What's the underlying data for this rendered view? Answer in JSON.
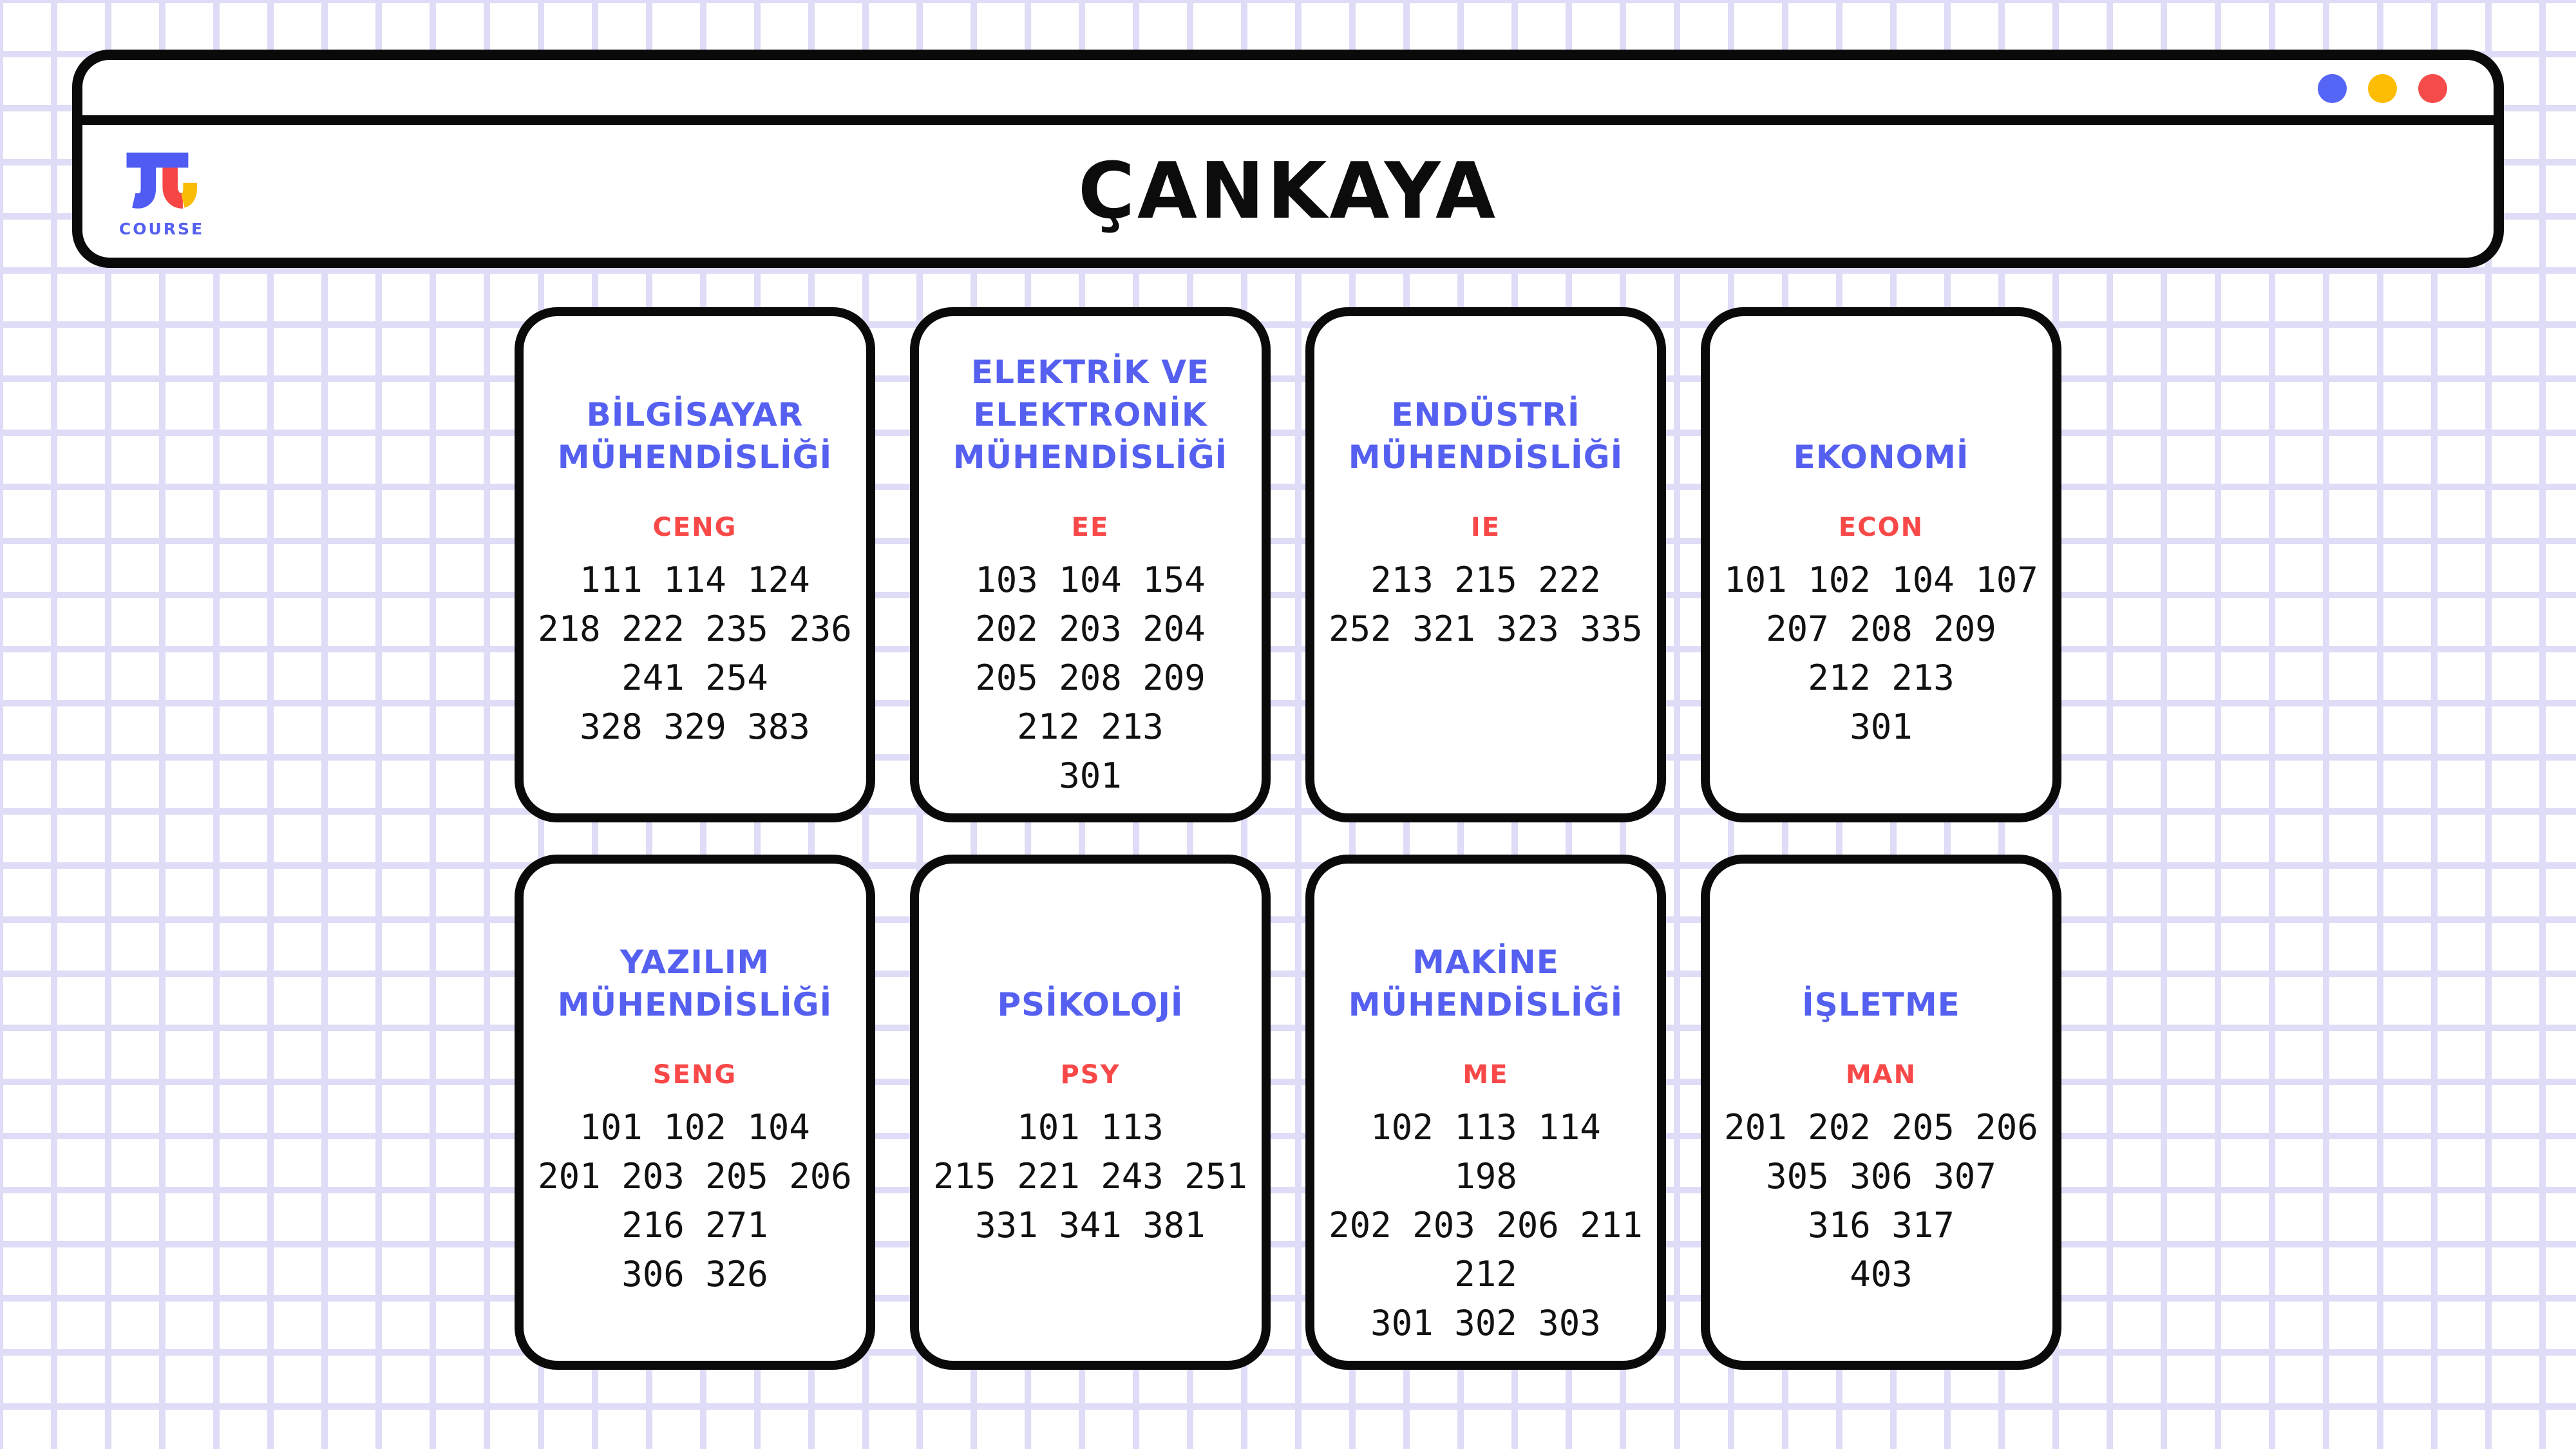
{
  "header": {
    "title": "ÇANKAYA",
    "brand": {
      "wordmark": "COURSE"
    },
    "window_controls": [
      {
        "name": "window-control-blue",
        "color": "#5565F5"
      },
      {
        "name": "window-control-yellow",
        "color": "#FCBD04"
      },
      {
        "name": "window-control-red",
        "color": "#F64B4B"
      }
    ]
  },
  "colors": {
    "accent_blue": "#5560F0",
    "accent_red": "#F84848",
    "ink": "#0A0A0A",
    "grid_line": "#DEDCF6",
    "logo_blue": "#4F5BF2",
    "logo_red": "#F64545",
    "logo_yellow": "#FBBC05"
  },
  "cards": [
    {
      "title": "BİLGİSAYAR MÜHENDİSLİĞİ",
      "code": "CENG",
      "lines": [
        [
          "111",
          "114",
          "124"
        ],
        [
          "218",
          "222",
          "235",
          "236"
        ],
        [
          "241",
          "254"
        ],
        [
          "328",
          "329",
          "383"
        ]
      ]
    },
    {
      "title": "ELEKTRİK VE ELEKTRONİK MÜHENDİSLİĞİ",
      "code": "EE",
      "lines": [
        [
          "103",
          "104",
          "154"
        ],
        [
          "202",
          "203",
          "204"
        ],
        [
          "205",
          "208",
          "209"
        ],
        [
          "212",
          "213"
        ],
        [
          "301"
        ]
      ]
    },
    {
      "title": "ENDÜSTRİ MÜHENDİSLİĞİ",
      "code": "IE",
      "lines": [
        [
          "213",
          "215",
          "222"
        ],
        [
          "252",
          "321",
          "323",
          "335"
        ]
      ]
    },
    {
      "title": "EKONOMİ",
      "code": "ECON",
      "lines": [
        [
          "101",
          "102",
          "104",
          "107"
        ],
        [
          "207",
          "208",
          "209"
        ],
        [
          "212",
          "213"
        ],
        [
          "301"
        ]
      ]
    },
    {
      "title": "YAZILIM MÜHENDİSLİĞİ",
      "code": "SENG",
      "lines": [
        [
          "101",
          "102",
          "104"
        ],
        [
          "201",
          "203",
          "205",
          "206"
        ],
        [
          "216",
          "271"
        ],
        [
          "306",
          "326"
        ]
      ]
    },
    {
      "title": "PSİKOLOJİ",
      "code": "PSY",
      "lines": [
        [
          "101",
          "113"
        ],
        [
          "215",
          "221",
          "243",
          "251"
        ],
        [
          "331",
          "341",
          "381"
        ]
      ]
    },
    {
      "title": "MAKİNE MÜHENDİSLİĞİ",
      "code": "ME",
      "lines": [
        [
          "102",
          "113",
          "114"
        ],
        [
          "198"
        ],
        [
          "202",
          "203",
          "206",
          "211"
        ],
        [
          "212"
        ],
        [
          "301",
          "302",
          "303"
        ]
      ]
    },
    {
      "title": "İŞLETME",
      "code": "MAN",
      "lines": [
        [
          "201",
          "202",
          "205",
          "206"
        ],
        [
          "305",
          "306",
          "307"
        ],
        [
          "316",
          "317"
        ],
        [
          "403"
        ]
      ]
    }
  ]
}
